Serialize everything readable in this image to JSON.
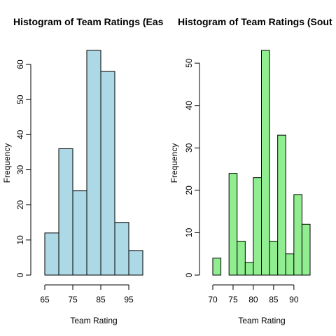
{
  "chart_data": [
    {
      "type": "bar",
      "title": "Histogram of Team Ratings (Eas",
      "xlabel": "Team Rating",
      "ylabel": "Frequency",
      "bin_edges": [
        65,
        70,
        75,
        80,
        85,
        90,
        95,
        100
      ],
      "values": [
        12,
        36,
        24,
        64,
        58,
        15,
        7
      ],
      "xlim": [
        65,
        100
      ],
      "ylim": [
        0,
        64
      ],
      "xticks": [
        65,
        75,
        85,
        95
      ],
      "xtick_labels": [
        "65",
        "75",
        "85",
        "95"
      ],
      "yticks": [
        0,
        10,
        20,
        30,
        40,
        50,
        60
      ],
      "ytick_labels": [
        "0",
        "10",
        "20",
        "30",
        "40",
        "50",
        "60"
      ],
      "bar_color": "#add8e6",
      "grid": false
    },
    {
      "type": "bar",
      "title": "Histogram of Team Ratings (Sout",
      "xlabel": "Team Rating",
      "ylabel": "Frequency",
      "bin_edges": [
        70,
        72,
        74,
        76,
        78,
        80,
        82,
        84,
        86,
        88,
        90,
        92,
        94
      ],
      "values": [
        4,
        0,
        24,
        8,
        3,
        23,
        53,
        8,
        33,
        5,
        19,
        12
      ],
      "xlim": [
        70,
        94
      ],
      "ylim": [
        0,
        53
      ],
      "xticks": [
        70,
        75,
        80,
        85,
        90
      ],
      "xtick_labels": [
        "70",
        "75",
        "80",
        "85",
        "90"
      ],
      "yticks": [
        0,
        10,
        20,
        30,
        40,
        50
      ],
      "ytick_labels": [
        "0",
        "10",
        "20",
        "30",
        "40",
        "50"
      ],
      "bar_color": "#90ee90",
      "grid": false
    }
  ]
}
